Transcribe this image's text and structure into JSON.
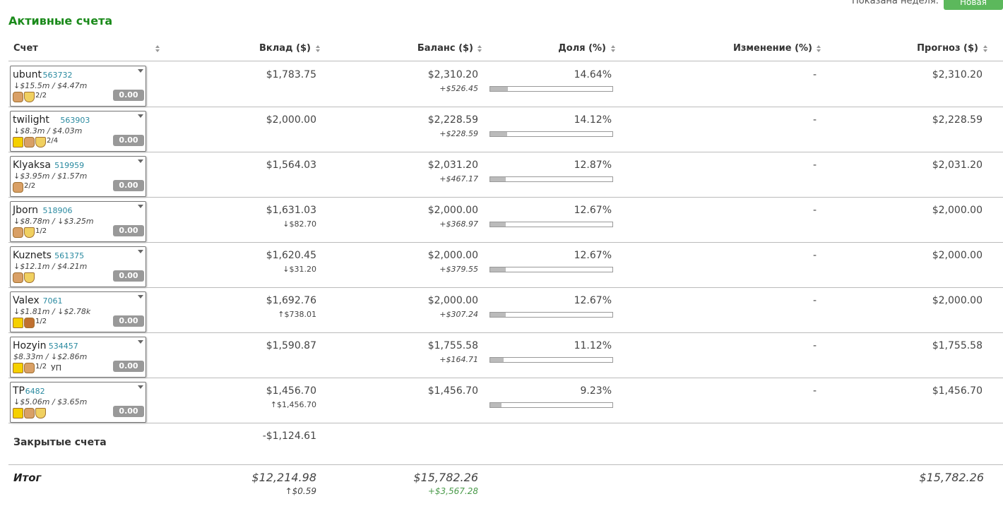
{
  "header": {
    "shown_label": "Показана неделя:",
    "new_button": "Новая",
    "title": "Активные счета"
  },
  "table": {
    "columns": [
      "Счет",
      "Вклад ($)",
      "Баланс ($)",
      "Доля (%)",
      "Изменение (%)",
      "Прогноз ($)"
    ],
    "rows": [
      {
        "name": "ubunt",
        "id": "563732",
        "stats": "↓$15.5m / $4.47m",
        "fraction": "2/2",
        "badge": "0.00",
        "deposit": "$1,783.75",
        "balance": "$2,310.20",
        "balance_change": "+$526.45",
        "share": {
          "value": 14.64,
          "label": "14.64%"
        },
        "change": "-",
        "forecast": "$2,310.20"
      },
      {
        "name": "twilight",
        "id": "563903",
        "stats": "↓$8.3m / $4.03m",
        "fraction": "2/4",
        "badge": "0.00",
        "deposit": "$2,000.00",
        "balance": "$2,228.59",
        "balance_change": "+$228.59",
        "share": {
          "value": 14.12,
          "label": "14.12%"
        },
        "change": "-",
        "forecast": "$2,228.59"
      },
      {
        "name": "Klyaksa",
        "id": "519959",
        "stats": "↓$3.95m / $1.57m",
        "fraction": "2/2",
        "badge": "0.00",
        "deposit": "$1,564.03",
        "balance": "$2,031.20",
        "balance_change": "+$467.17",
        "share": {
          "value": 12.87,
          "label": "12.87%"
        },
        "change": "-",
        "forecast": "$2,031.20"
      },
      {
        "name": "Jborn",
        "id": "518906",
        "stats": "↓$8.78m / ↓$3.25m",
        "fraction": "1/2",
        "badge": "0.00",
        "deposit": "$1,631.03",
        "deposit_change": "↓$82.70",
        "balance": "$2,000.00",
        "balance_change": "+$368.97",
        "share": {
          "value": 12.67,
          "label": "12.67%"
        },
        "change": "-",
        "forecast": "$2,000.00"
      },
      {
        "name": "Kuznets",
        "id": "561375",
        "stats": "↓$12.1m / $4.21m",
        "badge": "0.00",
        "deposit": "$1,620.45",
        "deposit_change": "↓$31.20",
        "balance": "$2,000.00",
        "balance_change": "+$379.55",
        "share": {
          "value": 12.67,
          "label": "12.67%"
        },
        "change": "-",
        "forecast": "$2,000.00"
      },
      {
        "name": "Valex",
        "id": "7061",
        "stats": "↓$1.81m / ↓$2.78k",
        "fraction": "1/2",
        "badge": "0.00",
        "deposit": "$1,692.76",
        "deposit_change": "↑$738.01",
        "balance": "$2,000.00",
        "balance_change": "+$307.24",
        "share": {
          "value": 12.67,
          "label": "12.67%"
        },
        "change": "-",
        "forecast": "$2,000.00"
      },
      {
        "name": "Hozyin",
        "id": "534457",
        "stats": "$8.33m / ↓$2.86m",
        "fraction": "1/2",
        "note": "УП",
        "badge": "0.00",
        "deposit": "$1,590.87",
        "balance": "$1,755.58",
        "balance_change": "+$164.71",
        "share": {
          "value": 11.12,
          "label": "11.12%"
        },
        "change": "-",
        "forecast": "$1,755.58"
      },
      {
        "name": "TP",
        "id": "6482",
        "stats": "↓$5.06m / $3.65m",
        "badge": "0.00",
        "deposit": "$1,456.70",
        "deposit_change": "↑$1,456.70",
        "balance": "$1,456.70",
        "share": {
          "value": 9.23,
          "label": "9.23%"
        },
        "change": "-",
        "forecast": "$1,456.70"
      }
    ],
    "closed": {
      "label": "Закрытые счета",
      "deposit": "-$1,124.61"
    },
    "total": {
      "label": "Итог",
      "deposit": "$12,214.98",
      "deposit_change": "↑$0.59",
      "balance": "$15,782.26",
      "balance_change": "+$3,567.28",
      "forecast": "$15,782.26"
    }
  }
}
